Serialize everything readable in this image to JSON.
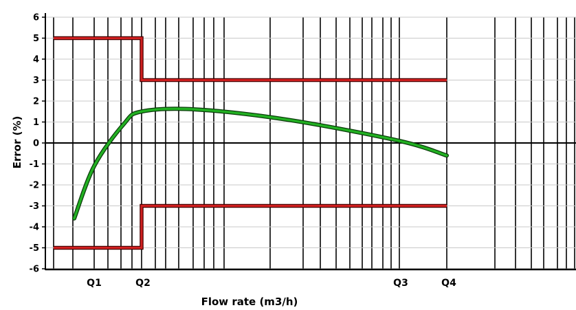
{
  "chart_data": {
    "type": "line",
    "title": "",
    "xlabel": "Flow rate (m3/h)",
    "ylabel": "Error (%)",
    "x_scale": "log",
    "grid": true,
    "ylim": [
      -6,
      6
    ],
    "yticks": [
      "6",
      "5",
      "4",
      "3",
      "2",
      "1",
      "0",
      "-1",
      "-2",
      "-3",
      "-4",
      "-5",
      "-6"
    ],
    "xtick_labels": [
      "Q1",
      "Q2",
      "Q3",
      "Q4"
    ],
    "limits": {
      "upper": [
        {
          "from": "start",
          "to": "Q2",
          "value": 5
        },
        {
          "from": "Q2",
          "to": "Q4",
          "value": 3
        }
      ],
      "lower": [
        {
          "from": "start",
          "to": "Q2",
          "value": -5
        },
        {
          "from": "Q2",
          "to": "Q4",
          "value": -3
        }
      ],
      "color": "#d02020"
    },
    "series": [
      {
        "color": "#22b022",
        "points": [
          {
            "x": "below Q1",
            "y": -3.6
          },
          {
            "x": "Q1",
            "y": -1.1
          },
          {
            "x": "between Q1 and Q2",
            "y": 0.9
          },
          {
            "x": "Q2",
            "y": 1.5
          },
          {
            "x": "above Q2",
            "y": 1.6
          },
          {
            "x": "mid range",
            "y": 1.1
          },
          {
            "x": "Q3",
            "y": 0.1
          },
          {
            "x": "Q4",
            "y": -0.6
          }
        ]
      }
    ]
  }
}
